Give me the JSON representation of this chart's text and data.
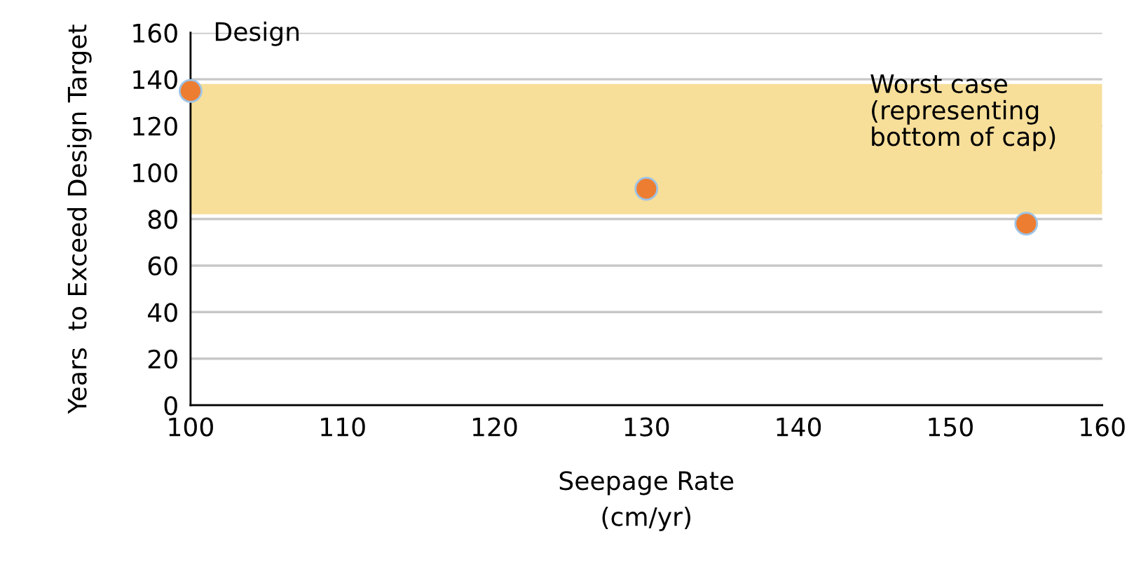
{
  "chart_data": {
    "type": "scatter",
    "xlabel": "Seepage Rate\n(cm/yr)",
    "ylabel": "Years  to Exceed Design Target",
    "x": [
      100,
      130,
      155
    ],
    "series": [
      {
        "color": "#ed7d31",
        "values": [
          135,
          93,
          78
        ]
      }
    ],
    "xlim": [
      100,
      160
    ],
    "xticks": [
      100,
      110,
      120,
      130,
      140,
      150,
      160
    ],
    "ylim": [
      0,
      160
    ],
    "yticks": [
      0,
      20,
      40,
      60,
      80,
      100,
      120,
      140,
      160
    ],
    "grid": "y",
    "marker": "circle",
    "bands": [
      {
        "axis": "y",
        "from": 82,
        "to": 138,
        "color": "#f7df9a"
      }
    ],
    "annotations": [
      "Design",
      "Worst case\n(representing\nbottom of cap)"
    ]
  }
}
